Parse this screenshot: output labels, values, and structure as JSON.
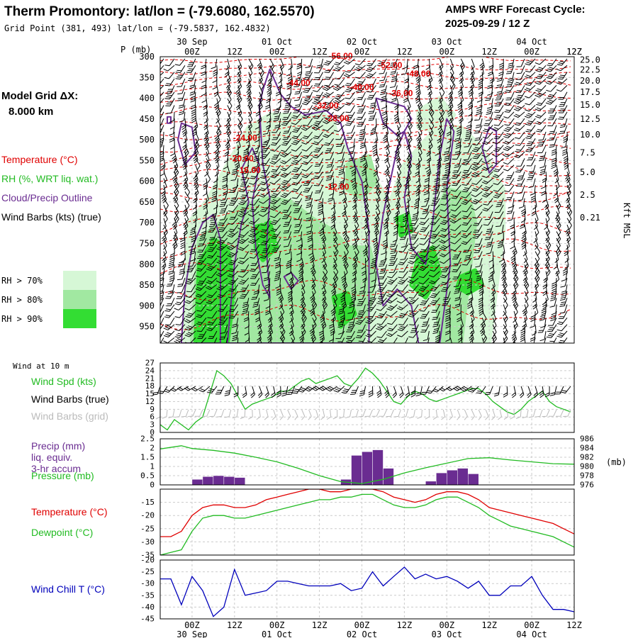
{
  "header": {
    "title": "Therm Promontory:  lat/lon = (-79.6080, 162.5570)",
    "subtitle": "Grid Point (381, 493) lat/lon = (-79.5837, 162.4832)",
    "cycle_line1": "AMPS WRF Forecast Cycle:",
    "cycle_line2": "2025-09-29 / 12  Z"
  },
  "left_legend": {
    "model_grid_line1": "Model Grid ΔX:",
    "model_grid_line2": "8.000 km",
    "temperature": "Temperature (°C)",
    "rh": "RH (%, WRT liq. wat.)",
    "cloud": "Cloud/Precip Outline",
    "wind": "Wind Barbs (kts) (true)",
    "rh_thresholds": [
      {
        "label": "RH > 70%",
        "color": "#d6f7d6"
      },
      {
        "label": "RH > 80%",
        "color": "#a1e8a1"
      },
      {
        "label": "RH > 90%",
        "color": "#33dd33"
      }
    ]
  },
  "time_axis": {
    "hour_labels": [
      "00Z",
      "12Z",
      "00Z",
      "12Z",
      "00Z",
      "12Z",
      "00Z",
      "12Z",
      "00Z",
      "12Z"
    ],
    "hour_positions": [
      0,
      12,
      24,
      36,
      48,
      60,
      72,
      84,
      96,
      108
    ],
    "date_labels": [
      "30 Sep",
      "01 Oct",
      "02 Oct",
      "03 Oct",
      "04 Oct"
    ],
    "date_positions": [
      0,
      24,
      48,
      72,
      96
    ],
    "x_range": [
      -9,
      108
    ]
  },
  "colors": {
    "temperature": "#e00000",
    "rh": "#22bb22",
    "cloud": "#6a2c91",
    "wind": "#000000",
    "wind_grid": "#bbbbbb",
    "precip": "#6a2c91",
    "pressure": "#22bb22",
    "dewpoint": "#22bb22",
    "windchill": "#0000bb"
  },
  "chart_data": [
    {
      "type": "area",
      "name": "cross-section",
      "axis_label": "P (mb)",
      "right_axis_label": "Kft MSL",
      "pressure_ticks": [
        300,
        350,
        400,
        450,
        500,
        550,
        600,
        650,
        700,
        750,
        800,
        850,
        900,
        950
      ],
      "kft_ticks": [
        {
          "p": 308,
          "label": "25.0"
        },
        {
          "p": 332,
          "label": "22.5"
        },
        {
          "p": 358,
          "label": "20.0"
        },
        {
          "p": 385,
          "label": "17.5"
        },
        {
          "p": 416,
          "label": "15.0"
        },
        {
          "p": 450,
          "label": "12.5"
        },
        {
          "p": 488,
          "label": "10.0"
        },
        {
          "p": 531,
          "label": "7.5"
        },
        {
          "p": 578,
          "label": "5.0"
        },
        {
          "p": 633,
          "label": "2.5"
        },
        {
          "p": 688,
          "label": "0.21"
        }
      ],
      "ylim": [
        300,
        990
      ],
      "temperature_labels": [
        {
          "t": 42,
          "p": 305,
          "label": "-56.00"
        },
        {
          "t": 56,
          "p": 327,
          "label": "-52.00"
        },
        {
          "t": 64,
          "p": 348,
          "label": "-48.00"
        },
        {
          "t": 30,
          "p": 370,
          "label": "-44.00"
        },
        {
          "t": 48,
          "p": 380,
          "label": "-40.00"
        },
        {
          "t": 59,
          "p": 395,
          "label": "-36.00"
        },
        {
          "t": 38,
          "p": 425,
          "label": "-32.00"
        },
        {
          "t": 41,
          "p": 455,
          "label": "-28.00"
        },
        {
          "t": 15,
          "p": 502,
          "label": "-24.00"
        },
        {
          "t": 14,
          "p": 552,
          "label": "-20.00"
        },
        {
          "t": 16,
          "p": 580,
          "label": "-16.00"
        },
        {
          "t": 41,
          "p": 620,
          "label": "-12.00"
        }
      ]
    },
    {
      "type": "line",
      "name": "surface-wind",
      "header": "Wind at 10 m",
      "series_labels": [
        "Wind Spd (kts)",
        "Wind Barbs (true)",
        "Wind Barbs (grid)"
      ],
      "ylim": [
        0,
        27
      ],
      "ticks": [
        0,
        3,
        6,
        9,
        12,
        15,
        18,
        21,
        24,
        27
      ],
      "x": [
        -9,
        -7,
        -5,
        -3,
        -1,
        1,
        3,
        5,
        7,
        9,
        11,
        13,
        15,
        17,
        19,
        21,
        23,
        25,
        27,
        29,
        31,
        33,
        35,
        37,
        39,
        41,
        43,
        45,
        47,
        49,
        51,
        53,
        55,
        57,
        59,
        61,
        63,
        65,
        67,
        69,
        71,
        73,
        75,
        77,
        79,
        81,
        83,
        85,
        87,
        89,
        91,
        93,
        95,
        97,
        99,
        101,
        103,
        105,
        107
      ],
      "series": [
        {
          "name": "Wind Spd (kts)",
          "values": [
            3,
            1,
            5,
            3,
            1,
            4,
            6,
            15,
            24,
            22,
            19,
            14,
            9,
            11,
            12,
            13,
            14,
            16,
            16,
            18,
            20,
            21,
            19,
            20,
            21,
            22,
            19,
            18,
            21,
            25,
            23,
            20,
            16,
            12,
            11,
            14,
            16,
            15,
            13,
            12,
            13,
            14,
            15,
            16,
            17,
            17,
            15,
            12,
            10,
            8,
            7,
            9,
            12,
            14,
            16,
            12,
            10,
            9,
            8
          ]
        }
      ]
    },
    {
      "type": "bar",
      "name": "precip-pressure",
      "series_labels": [
        "Precip (mm)",
        "liq. equiv.",
        "3-hr accum",
        "Pressure (mb)"
      ],
      "ylim": [
        0,
        2.5
      ],
      "ticks": [
        0.0,
        0.5,
        1.0,
        1.5,
        2.0,
        2.5
      ],
      "pressure_ticks": [
        976,
        978,
        980,
        982,
        984,
        986
      ],
      "pressure_range": [
        976,
        986
      ],
      "pressure_unit": "(mb)",
      "precip_x": [
        0,
        3,
        6,
        9,
        12,
        42,
        45,
        48,
        51,
        54,
        66,
        69,
        72,
        75,
        78
      ],
      "precip_values": [
        0.3,
        0.45,
        0.5,
        0.45,
        0.4,
        0.3,
        1.6,
        1.8,
        1.9,
        0.9,
        0.2,
        0.65,
        0.8,
        0.9,
        0.6
      ],
      "pressure_x": [
        -9,
        -3,
        0,
        6,
        12,
        18,
        24,
        30,
        36,
        42,
        48,
        54,
        60,
        66,
        72,
        78,
        84,
        90,
        96,
        102,
        108
      ],
      "pressure_values": [
        983.8,
        984.5,
        983.9,
        983.5,
        982.9,
        982.0,
        981.0,
        979.6,
        978.0,
        976.7,
        976.3,
        977.2,
        978.6,
        979.7,
        980.7,
        981.7,
        981.9,
        981.4,
        981.0,
        980.6,
        980.5
      ]
    },
    {
      "type": "line",
      "name": "temperature-dewpoint",
      "series_labels": [
        "Temperature (°C)",
        "Dewpoint (°C)"
      ],
      "ylim": [
        -35,
        -10
      ],
      "ticks": [
        -35,
        -30,
        -25,
        -20,
        -15
      ],
      "x": [
        -9,
        -6,
        -3,
        0,
        3,
        6,
        9,
        12,
        15,
        18,
        21,
        24,
        27,
        30,
        33,
        36,
        39,
        42,
        45,
        48,
        51,
        54,
        57,
        60,
        63,
        66,
        69,
        72,
        75,
        78,
        81,
        84,
        87,
        90,
        93,
        96,
        99,
        102,
        105,
        108
      ],
      "series": [
        {
          "name": "Temperature (°C)",
          "values": [
            -28,
            -28,
            -26,
            -20,
            -17,
            -16,
            -16,
            -17,
            -17,
            -16,
            -14,
            -13,
            -12,
            -11,
            -10,
            -10,
            -11,
            -11,
            -10,
            -10,
            -10,
            -11,
            -13,
            -14,
            -15,
            -14,
            -12,
            -11,
            -11,
            -12,
            -14,
            -17,
            -18,
            -19,
            -20,
            -21,
            -22,
            -23,
            -25,
            -27
          ]
        },
        {
          "name": "Dewpoint (°C)",
          "values": [
            -35,
            -34,
            -33,
            -26,
            -21,
            -20,
            -20,
            -21,
            -21,
            -20,
            -19,
            -18,
            -17,
            -16,
            -15,
            -14,
            -14,
            -13,
            -13,
            -12,
            -12,
            -14,
            -16,
            -17,
            -17,
            -16,
            -14,
            -13,
            -13,
            -15,
            -17,
            -20,
            -22,
            -24,
            -25,
            -26,
            -27,
            -28,
            -30,
            -32
          ]
        }
      ]
    },
    {
      "type": "line",
      "name": "wind-chill",
      "series_labels": [
        "Wind Chill T (°C)"
      ],
      "ylim": [
        -45,
        -20
      ],
      "ticks": [
        -45,
        -40,
        -35,
        -30,
        -25,
        -20
      ],
      "x": [
        -9,
        -6,
        -3,
        0,
        3,
        6,
        9,
        12,
        15,
        18,
        21,
        24,
        27,
        30,
        33,
        36,
        39,
        42,
        45,
        48,
        51,
        54,
        57,
        60,
        63,
        66,
        69,
        72,
        75,
        78,
        81,
        84,
        87,
        90,
        93,
        96,
        99,
        102,
        105,
        108
      ],
      "series": [
        {
          "name": "Wind Chill T (°C)",
          "values": [
            -28,
            -28,
            -39,
            -27,
            -33,
            -44,
            -40,
            -24,
            -35,
            -34,
            -33,
            -29,
            -29,
            -30,
            -31,
            -31,
            -31,
            -30,
            -33,
            -32,
            -25,
            -31,
            -27,
            -23,
            -28,
            -26,
            -28,
            -27,
            -29,
            -32,
            -29,
            -35,
            -35,
            -31,
            -31,
            -27,
            -35,
            -41,
            -41,
            -42
          ]
        }
      ]
    }
  ]
}
